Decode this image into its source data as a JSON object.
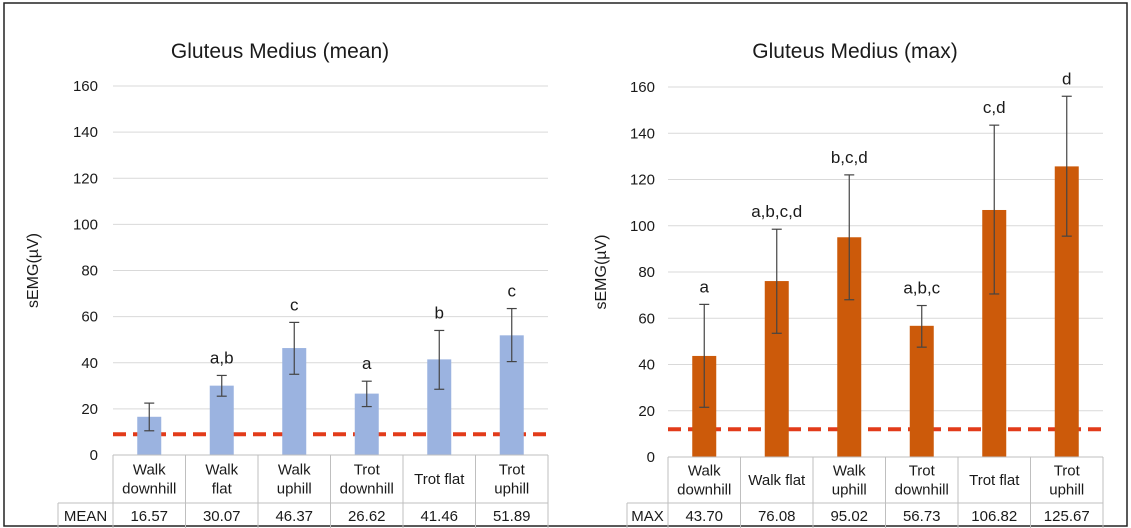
{
  "chart_data": [
    {
      "type": "bar",
      "title": "Gluteus Medius (mean)",
      "ylabel": "sEMG(µV)",
      "xlabel": "",
      "ylim": [
        0,
        160
      ],
      "yticks": [
        0,
        20,
        40,
        60,
        80,
        100,
        120,
        140,
        160
      ],
      "grid": true,
      "legend": "none",
      "bar_color": "#9bb3e0",
      "threshold_color": "#e23b1a",
      "threshold": 9,
      "categories": [
        [
          "Walk",
          "downhill"
        ],
        [
          "Walk",
          "flat"
        ],
        [
          "Walk",
          "uphill"
        ],
        [
          "Trot",
          "downhill"
        ],
        [
          "Trot flat"
        ],
        [
          "Trot",
          "uphill"
        ]
      ],
      "values": [
        16.57,
        30.07,
        46.37,
        26.62,
        41.46,
        51.89
      ],
      "error_low": [
        10.5,
        25.5,
        35.0,
        21.0,
        28.5,
        40.5
      ],
      "error_high": [
        22.5,
        34.5,
        57.5,
        32.0,
        54.0,
        63.5
      ],
      "letters": [
        "",
        "a,b",
        "c",
        "a",
        "b",
        "c"
      ],
      "table_label": "MEAN",
      "table_values": [
        "16.57",
        "30.07",
        "46.37",
        "26.62",
        "41.46",
        "51.89"
      ]
    },
    {
      "type": "bar",
      "title": "Gluteus Medius (max)",
      "ylabel": "sEMG(µV)",
      "xlabel": "",
      "ylim": [
        0,
        160
      ],
      "yticks": [
        0,
        20,
        40,
        60,
        80,
        100,
        120,
        140,
        160
      ],
      "grid": true,
      "legend": "none",
      "bar_color": "#cc5a0a",
      "threshold_color": "#e23b1a",
      "threshold": 12,
      "categories": [
        [
          "Walk",
          "downhill"
        ],
        [
          "Walk flat"
        ],
        [
          "Walk",
          "uphill"
        ],
        [
          "Trot",
          "downhill"
        ],
        [
          "Trot flat"
        ],
        [
          "Trot",
          "uphill"
        ]
      ],
      "values": [
        43.7,
        76.08,
        95.02,
        56.73,
        106.82,
        125.67
      ],
      "error_low": [
        21.5,
        53.5,
        68.0,
        47.5,
        70.5,
        95.5
      ],
      "error_high": [
        66.0,
        98.5,
        122.0,
        65.5,
        143.5,
        156.0
      ],
      "letters": [
        "a",
        "a,b,c,d",
        "b,c,d",
        "a,b,c",
        "c,d",
        "d"
      ],
      "table_label": "MAX",
      "table_values": [
        "43.70",
        "76.08",
        "95.02",
        "56.73",
        "106.82",
        "125.67"
      ]
    }
  ]
}
